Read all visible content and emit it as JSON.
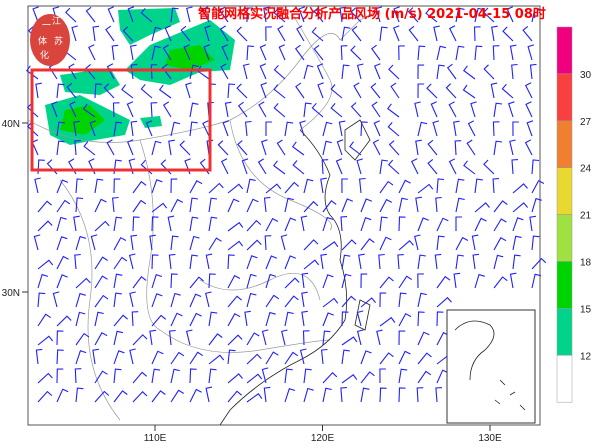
{
  "title": "智能网格实况融合分析产品风场 (m/s) 2021-04-15 08时",
  "logo": {
    "text": "江苏一体化",
    "color": "#d9443c"
  },
  "axes": {
    "lat_ticks": [
      {
        "label": "40N",
        "value": 40
      },
      {
        "label": "30N",
        "value": 30
      }
    ],
    "lon_ticks": [
      {
        "label": "110E",
        "value": 110
      },
      {
        "label": "120E",
        "value": 120
      },
      {
        "label": "130E",
        "value": 130
      }
    ]
  },
  "colorbar": {
    "levels": [
      "12",
      "15",
      "18",
      "21",
      "24",
      "27",
      "30"
    ],
    "colors": [
      "#ffffff",
      "#00d48a",
      "#00d400",
      "#a0e040",
      "#e8d830",
      "#f08030",
      "#f84040",
      "#f0007c"
    ]
  },
  "highlight_box_color": "#f03030",
  "barb_color": "#2020ff"
}
